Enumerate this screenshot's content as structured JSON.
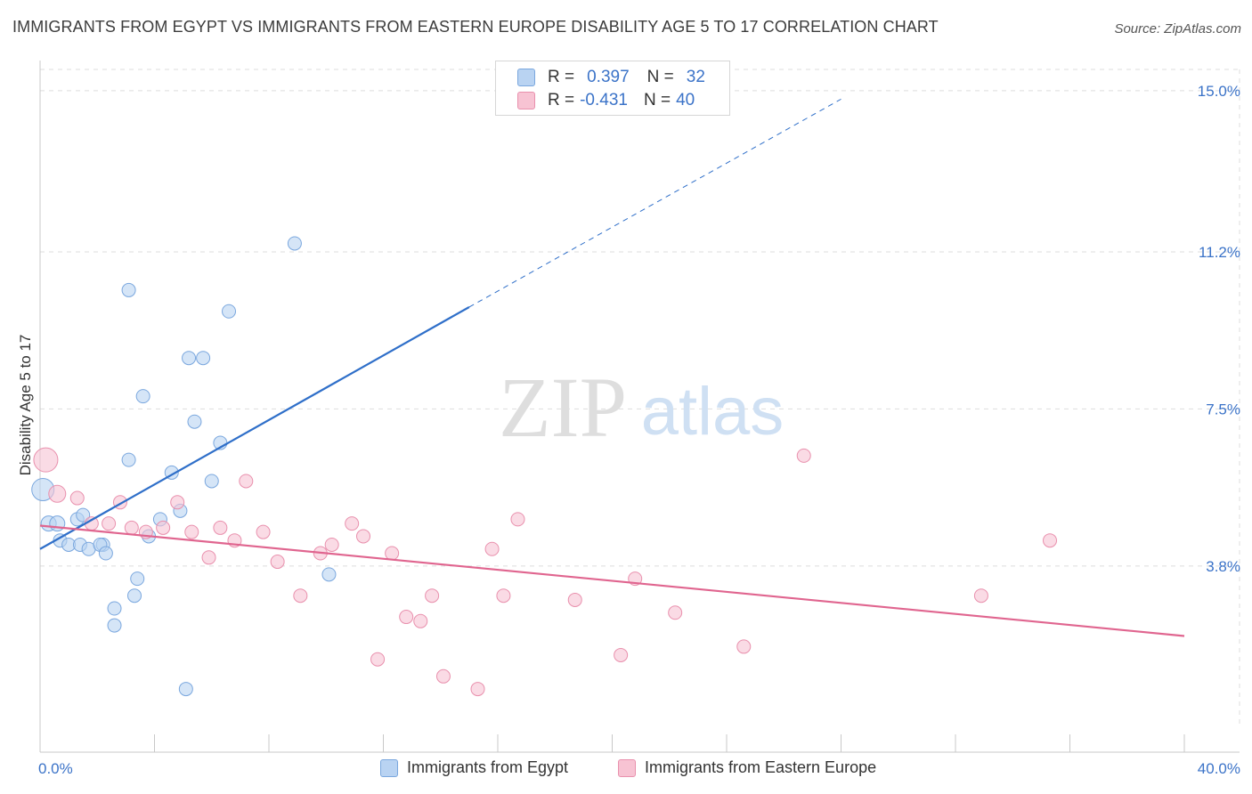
{
  "title": "IMMIGRANTS FROM EGYPT VS IMMIGRANTS FROM EASTERN EUROPE DISABILITY AGE 5 TO 17 CORRELATION CHART",
  "source": "Source: ZipAtlas.com",
  "watermark": {
    "zip": "ZIP",
    "atlas": "atlas"
  },
  "legend_stats": [
    {
      "r_label": "R =",
      "r_value": "0.397",
      "n_label": "N =",
      "n_value": "32"
    },
    {
      "r_label": "R =",
      "r_value": "-0.431",
      "n_label": "N =",
      "n_value": "40"
    }
  ],
  "colors": {
    "egypt_fill": "#b9d3f2",
    "egypt_stroke": "#7aa7de",
    "egypt_line": "#2f6fc9",
    "ee_fill": "#f7c3d3",
    "ee_stroke": "#e990ad",
    "ee_line": "#e0658f",
    "tick_label": "#3b73c8",
    "grid": "#dddddd"
  },
  "chart_data": {
    "type": "scatter",
    "title": "IMMIGRANTS FROM EGYPT VS IMMIGRANTS FROM EASTERN EUROPE DISABILITY AGE 5 TO 17 CORRELATION CHART",
    "xlabel": "",
    "ylabel": "Disability Age 5 to 17",
    "xlim": [
      0,
      40
    ],
    "ylim": [
      0,
      15.5
    ],
    "x_tick_labels": [
      {
        "value": 0,
        "label": "0.0%"
      },
      {
        "value": 40,
        "label": "40.0%"
      }
    ],
    "y_tick_labels": [
      {
        "value": 3.8,
        "label": "3.8%"
      },
      {
        "value": 7.5,
        "label": "7.5%"
      },
      {
        "value": 11.2,
        "label": "11.2%"
      },
      {
        "value": 15.0,
        "label": "15.0%"
      }
    ],
    "series": [
      {
        "name": "Immigrants from Egypt",
        "color_key": "egypt",
        "points": [
          [
            0.1,
            5.6,
            22
          ],
          [
            0.3,
            4.8,
            14
          ],
          [
            0.6,
            4.8,
            14
          ],
          [
            0.7,
            4.4,
            12
          ],
          [
            1.0,
            4.3,
            12
          ],
          [
            1.3,
            4.9,
            12
          ],
          [
            1.5,
            5.0,
            12
          ],
          [
            1.4,
            4.3,
            12
          ],
          [
            1.7,
            4.2,
            12
          ],
          [
            2.2,
            4.3,
            12
          ],
          [
            2.1,
            4.3,
            12
          ],
          [
            2.3,
            4.1,
            12
          ],
          [
            2.6,
            2.8,
            12
          ],
          [
            2.6,
            2.4,
            12
          ],
          [
            3.1,
            10.3,
            12
          ],
          [
            3.1,
            6.3,
            12
          ],
          [
            3.3,
            3.1,
            12
          ],
          [
            3.4,
            3.5,
            12
          ],
          [
            3.6,
            7.8,
            12
          ],
          [
            3.8,
            4.5,
            12
          ],
          [
            4.2,
            4.9,
            12
          ],
          [
            4.6,
            6.0,
            12
          ],
          [
            4.9,
            5.1,
            12
          ],
          [
            5.1,
            0.9,
            12
          ],
          [
            5.2,
            8.7,
            12
          ],
          [
            5.4,
            7.2,
            12
          ],
          [
            5.7,
            8.7,
            12
          ],
          [
            6.0,
            5.8,
            12
          ],
          [
            6.3,
            6.7,
            12
          ],
          [
            6.6,
            9.8,
            12
          ],
          [
            8.9,
            11.4,
            12
          ],
          [
            10.1,
            3.6,
            12
          ]
        ],
        "trend": {
          "x": [
            0,
            15
          ],
          "y": [
            4.2,
            9.9
          ]
        },
        "trend_extension": {
          "x": [
            15,
            28
          ],
          "y": [
            9.9,
            14.8
          ]
        }
      },
      {
        "name": "Immigrants from Eastern Europe",
        "color_key": "ee",
        "points": [
          [
            0.2,
            6.3,
            24
          ],
          [
            0.6,
            5.5,
            16
          ],
          [
            1.3,
            5.4,
            12
          ],
          [
            1.8,
            4.8,
            12
          ],
          [
            2.4,
            4.8,
            12
          ],
          [
            2.8,
            5.3,
            12
          ],
          [
            3.2,
            4.7,
            12
          ],
          [
            3.7,
            4.6,
            12
          ],
          [
            4.3,
            4.7,
            12
          ],
          [
            4.8,
            5.3,
            12
          ],
          [
            5.3,
            4.6,
            12
          ],
          [
            5.9,
            4.0,
            12
          ],
          [
            6.3,
            4.7,
            12
          ],
          [
            6.8,
            4.4,
            12
          ],
          [
            7.2,
            5.8,
            12
          ],
          [
            7.8,
            4.6,
            12
          ],
          [
            8.3,
            3.9,
            12
          ],
          [
            9.1,
            3.1,
            12
          ],
          [
            9.8,
            4.1,
            12
          ],
          [
            10.2,
            4.3,
            12
          ],
          [
            10.9,
            4.8,
            12
          ],
          [
            11.3,
            4.5,
            12
          ],
          [
            11.8,
            1.6,
            12
          ],
          [
            12.3,
            4.1,
            12
          ],
          [
            12.8,
            2.6,
            12
          ],
          [
            13.3,
            2.5,
            12
          ],
          [
            13.7,
            3.1,
            12
          ],
          [
            14.1,
            1.2,
            12
          ],
          [
            15.3,
            0.9,
            12
          ],
          [
            15.8,
            4.2,
            12
          ],
          [
            16.2,
            3.1,
            12
          ],
          [
            16.7,
            4.9,
            12
          ],
          [
            18.7,
            3.0,
            12
          ],
          [
            20.3,
            1.7,
            12
          ],
          [
            20.8,
            3.5,
            12
          ],
          [
            22.2,
            2.7,
            12
          ],
          [
            24.6,
            1.9,
            12
          ],
          [
            26.7,
            6.4,
            12
          ],
          [
            32.9,
            3.1,
            12
          ],
          [
            35.3,
            4.4,
            12
          ]
        ],
        "trend": {
          "x": [
            0,
            40
          ],
          "y": [
            4.75,
            2.15
          ]
        }
      }
    ]
  },
  "legend_bottom": [
    {
      "label": "Immigrants from Egypt",
      "color_key": "egypt"
    },
    {
      "label": "Immigrants from Eastern Europe",
      "color_key": "ee"
    }
  ]
}
